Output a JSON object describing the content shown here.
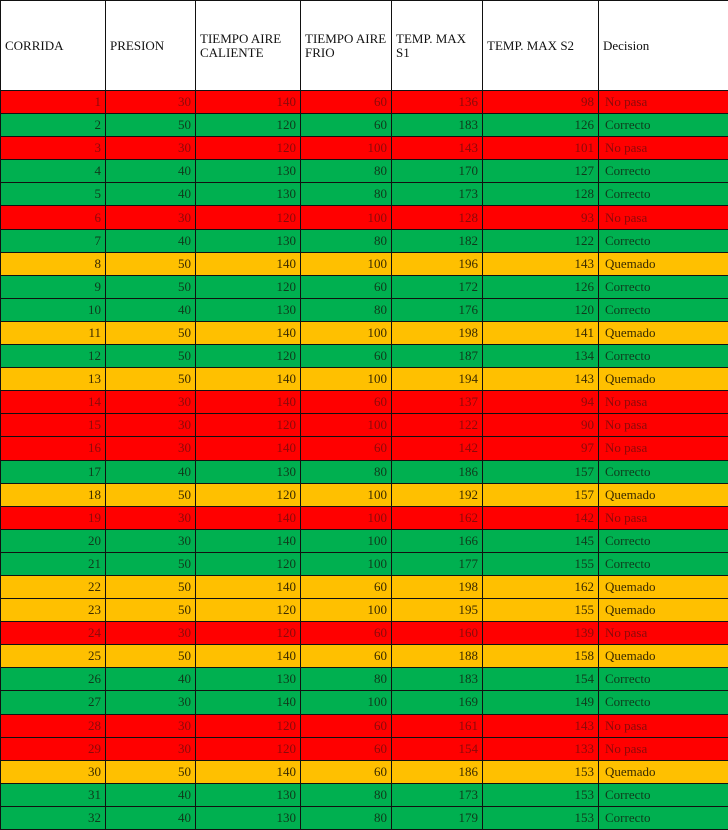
{
  "headers": [
    "CORRIDA",
    "PRESION",
    "TIEMPO AIRE CALIENTE",
    "TIEMPO AIRE FRIO",
    "TEMP. MAX S1",
    "TEMP.    MAX S2",
    "Decision"
  ],
  "colors": {
    "No pasa": "#ff0000",
    "Correcto": "#00b050",
    "Quemado": "#ffc000"
  },
  "rows": [
    [
      "1",
      "30",
      "140",
      "60",
      "136",
      "98",
      "No pasa"
    ],
    [
      "2",
      "50",
      "120",
      "60",
      "183",
      "126",
      "Correcto"
    ],
    [
      "3",
      "30",
      "120",
      "100",
      "143",
      "101",
      "No pasa"
    ],
    [
      "4",
      "40",
      "130",
      "80",
      "170",
      "127",
      "Correcto"
    ],
    [
      "5",
      "40",
      "130",
      "80",
      "173",
      "128",
      "Correcto"
    ],
    [
      "6",
      "30",
      "120",
      "100",
      "128",
      "93",
      "No pasa"
    ],
    [
      "7",
      "40",
      "130",
      "80",
      "182",
      "122",
      "Correcto"
    ],
    [
      "8",
      "50",
      "140",
      "100",
      "196",
      "143",
      "Quemado"
    ],
    [
      "9",
      "50",
      "120",
      "60",
      "172",
      "126",
      "Correcto"
    ],
    [
      "10",
      "40",
      "130",
      "80",
      "176",
      "120",
      "Correcto"
    ],
    [
      "11",
      "50",
      "140",
      "100",
      "198",
      "141",
      "Quemado"
    ],
    [
      "12",
      "50",
      "120",
      "60",
      "187",
      "134",
      "Correcto"
    ],
    [
      "13",
      "50",
      "140",
      "100",
      "194",
      "143",
      "Quemado"
    ],
    [
      "14",
      "30",
      "140",
      "60",
      "137",
      "94",
      "No pasa"
    ],
    [
      "15",
      "30",
      "120",
      "100",
      "122",
      "90",
      "No pasa"
    ],
    [
      "16",
      "30",
      "140",
      "60",
      "142",
      "97",
      "No pasa"
    ],
    [
      "17",
      "40",
      "130",
      "80",
      "186",
      "157",
      "Correcto"
    ],
    [
      "18",
      "50",
      "120",
      "100",
      "192",
      "157",
      "Quemado"
    ],
    [
      "19",
      "30",
      "140",
      "100",
      "162",
      "142",
      "No pasa"
    ],
    [
      "20",
      "30",
      "140",
      "100",
      "166",
      "145",
      "Correcto"
    ],
    [
      "21",
      "50",
      "120",
      "100",
      "177",
      "155",
      "Correcto"
    ],
    [
      "22",
      "50",
      "140",
      "60",
      "198",
      "162",
      "Quemado"
    ],
    [
      "23",
      "50",
      "120",
      "100",
      "195",
      "155",
      "Quemado"
    ],
    [
      "24",
      "30",
      "120",
      "60",
      "160",
      "139",
      "No pasa"
    ],
    [
      "25",
      "50",
      "140",
      "60",
      "188",
      "158",
      "Quemado"
    ],
    [
      "26",
      "40",
      "130",
      "80",
      "183",
      "154",
      "Correcto"
    ],
    [
      "27",
      "30",
      "140",
      "100",
      "169",
      "149",
      "Correcto"
    ],
    [
      "28",
      "30",
      "120",
      "60",
      "161",
      "143",
      "No pasa"
    ],
    [
      "29",
      "30",
      "120",
      "60",
      "154",
      "133",
      "No pasa"
    ],
    [
      "30",
      "50",
      "140",
      "60",
      "186",
      "153",
      "Quemado"
    ],
    [
      "31",
      "40",
      "130",
      "80",
      "173",
      "153",
      "Correcto"
    ],
    [
      "32",
      "40",
      "130",
      "80",
      "179",
      "153",
      "Correcto"
    ]
  ]
}
